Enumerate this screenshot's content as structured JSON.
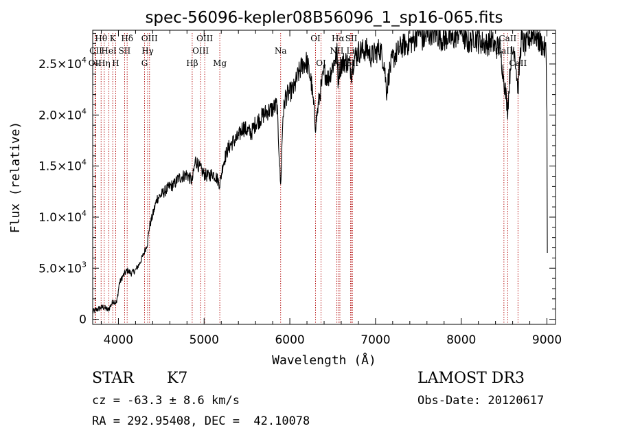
{
  "chart_data": {
    "type": "line",
    "title": "spec-56096-kepler08B56096_1_sp16-065.fits",
    "xlabel": "Wavelength (Å)",
    "ylabel": "Flux (relative)",
    "xlim": [
      3700,
      9100
    ],
    "ylim": [
      -500,
      28300
    ],
    "x_ticks": [
      {
        "value": 4000,
        "label": "4000"
      },
      {
        "value": 5000,
        "label": "5000"
      },
      {
        "value": 6000,
        "label": "6000"
      },
      {
        "value": 7000,
        "label": "7000"
      },
      {
        "value": 8000,
        "label": "8000"
      },
      {
        "value": 9000,
        "label": "9000"
      }
    ],
    "y_ticks": [
      {
        "value": 0,
        "label": "0"
      },
      {
        "value": 5000,
        "label": "5.0×10",
        "exp": "3"
      },
      {
        "value": 10000,
        "label": "1.0×10",
        "exp": "4"
      },
      {
        "value": 15000,
        "label": "1.5×10",
        "exp": "4"
      },
      {
        "value": 20000,
        "label": "2.0×10",
        "exp": "4"
      },
      {
        "value": 25000,
        "label": "2.5×10",
        "exp": "4"
      }
    ],
    "series": [
      {
        "name": "spectrum",
        "x": [
          3700,
          3760,
          3820,
          3880,
          3940,
          3980,
          4010,
          4050,
          4100,
          4150,
          4200,
          4250,
          4300,
          4340,
          4360,
          4400,
          4450,
          4500,
          4550,
          4600,
          4650,
          4700,
          4750,
          4800,
          4860,
          4900,
          4950,
          5000,
          5050,
          5100,
          5150,
          5183,
          5220,
          5270,
          5300,
          5350,
          5400,
          5450,
          5500,
          5550,
          5600,
          5650,
          5700,
          5750,
          5800,
          5850,
          5893,
          5920,
          5950,
          6000,
          6050,
          6100,
          6150,
          6200,
          6250,
          6300,
          6350,
          6400,
          6450,
          6500,
          6550,
          6563,
          6580,
          6600,
          6650,
          6700,
          6720,
          6750,
          6800,
          6850,
          6900,
          6950,
          7000,
          7050,
          7100,
          7130,
          7160,
          7200,
          7250,
          7300,
          7350,
          7400,
          7450,
          7500,
          7550,
          7600,
          7650,
          7700,
          7750,
          7800,
          7850,
          7900,
          7950,
          8000,
          8050,
          8100,
          8150,
          8200,
          8250,
          8300,
          8350,
          8400,
          8450,
          8498,
          8542,
          8580,
          8620,
          8662,
          8700,
          8750,
          8800,
          8850,
          8900,
          8950,
          8990,
          9000,
          9005
        ],
        "y": [
          700,
          1000,
          1200,
          900,
          1800,
          1600,
          3500,
          4200,
          4800,
          4500,
          4800,
          5500,
          6500,
          7500,
          9000,
          10200,
          11800,
          12200,
          12600,
          13000,
          13200,
          13800,
          14000,
          14200,
          13500,
          15600,
          14800,
          14200,
          14000,
          14300,
          13800,
          13200,
          15200,
          16500,
          17000,
          17500,
          17800,
          18800,
          18500,
          18200,
          19200,
          19600,
          20100,
          20400,
          20600,
          21000,
          13000,
          20000,
          21800,
          22200,
          22600,
          24000,
          25000,
          25200,
          23200,
          19000,
          22000,
          24200,
          23600,
          24800,
          26000,
          23500,
          24500,
          25000,
          25300,
          24900,
          24200,
          25600,
          26200,
          26300,
          26400,
          25700,
          26100,
          26500,
          25100,
          22300,
          24200,
          25500,
          26100,
          26700,
          26900,
          27100,
          27300,
          28400,
          27300,
          27700,
          28100,
          28000,
          27600,
          27300,
          27700,
          27300,
          27900,
          28500,
          27200,
          27100,
          27700,
          27200,
          27100,
          26900,
          27300,
          26600,
          26700,
          23500,
          20500,
          25600,
          26700,
          22500,
          27400,
          26700,
          27600,
          28100,
          27300,
          26800,
          26200,
          20000,
          6500
        ]
      }
    ],
    "spectral_lines": [
      {
        "label": "Hθ",
        "x": 3798,
        "row": 0
      },
      {
        "label": "OII",
        "x": 3727,
        "row": 2
      },
      {
        "label": "CII",
        "x": 3736,
        "row": 1
      },
      {
        "label": "Hη",
        "x": 3835,
        "row": 2
      },
      {
        "label": "HeI",
        "x": 3889,
        "row": 1
      },
      {
        "label": "K",
        "x": 3934,
        "row": 0
      },
      {
        "label": "H",
        "x": 3968,
        "row": 2
      },
      {
        "label": "SII",
        "x": 4072,
        "row": 1
      },
      {
        "label": "Hδ",
        "x": 4102,
        "row": 0
      },
      {
        "label": "G",
        "x": 4305,
        "row": 2
      },
      {
        "label": "OIII",
        "x": 4363,
        "row": 0
      },
      {
        "label": "Hγ",
        "x": 4341,
        "row": 1
      },
      {
        "label": "Hβ",
        "x": 4861,
        "row": 2
      },
      {
        "label": "OIII",
        "x": 4959,
        "row": 1
      },
      {
        "label": "OIII",
        "x": 5007,
        "row": 0
      },
      {
        "label": "Mg",
        "x": 5183,
        "row": 2
      },
      {
        "label": "Na",
        "x": 5893,
        "row": 1
      },
      {
        "label": "OI",
        "x": 6300,
        "row": 0
      },
      {
        "label": "OI",
        "x": 6364,
        "row": 2
      },
      {
        "label": "NII",
        "x": 6548,
        "row": 1
      },
      {
        "label": "NII",
        "x": 6584,
        "row": 2
      },
      {
        "label": "Hα",
        "x": 6563,
        "row": 0
      },
      {
        "label": "SII",
        "x": 6717,
        "row": 0
      },
      {
        "label": "Li",
        "x": 6708,
        "row": 1
      },
      {
        "label": "SII",
        "x": 6731,
        "row": 2
      },
      {
        "label": "CaII",
        "x": 8498,
        "row": 1
      },
      {
        "label": "CaII",
        "x": 8542,
        "row": 0
      },
      {
        "label": "CaII",
        "x": 8662,
        "row": 2
      }
    ]
  },
  "info": {
    "class_label": "STAR",
    "subclass": "K7",
    "survey": "LAMOST DR3",
    "velocity": "cz = -63.3 ± 8.6 km/s",
    "obs_date": "Obs-Date: 20120617",
    "coords": "RA = 292.95408, DEC =  42.10078"
  },
  "colors": {
    "line": "#000000",
    "marker": "#b00000",
    "background": "#ffffff"
  }
}
